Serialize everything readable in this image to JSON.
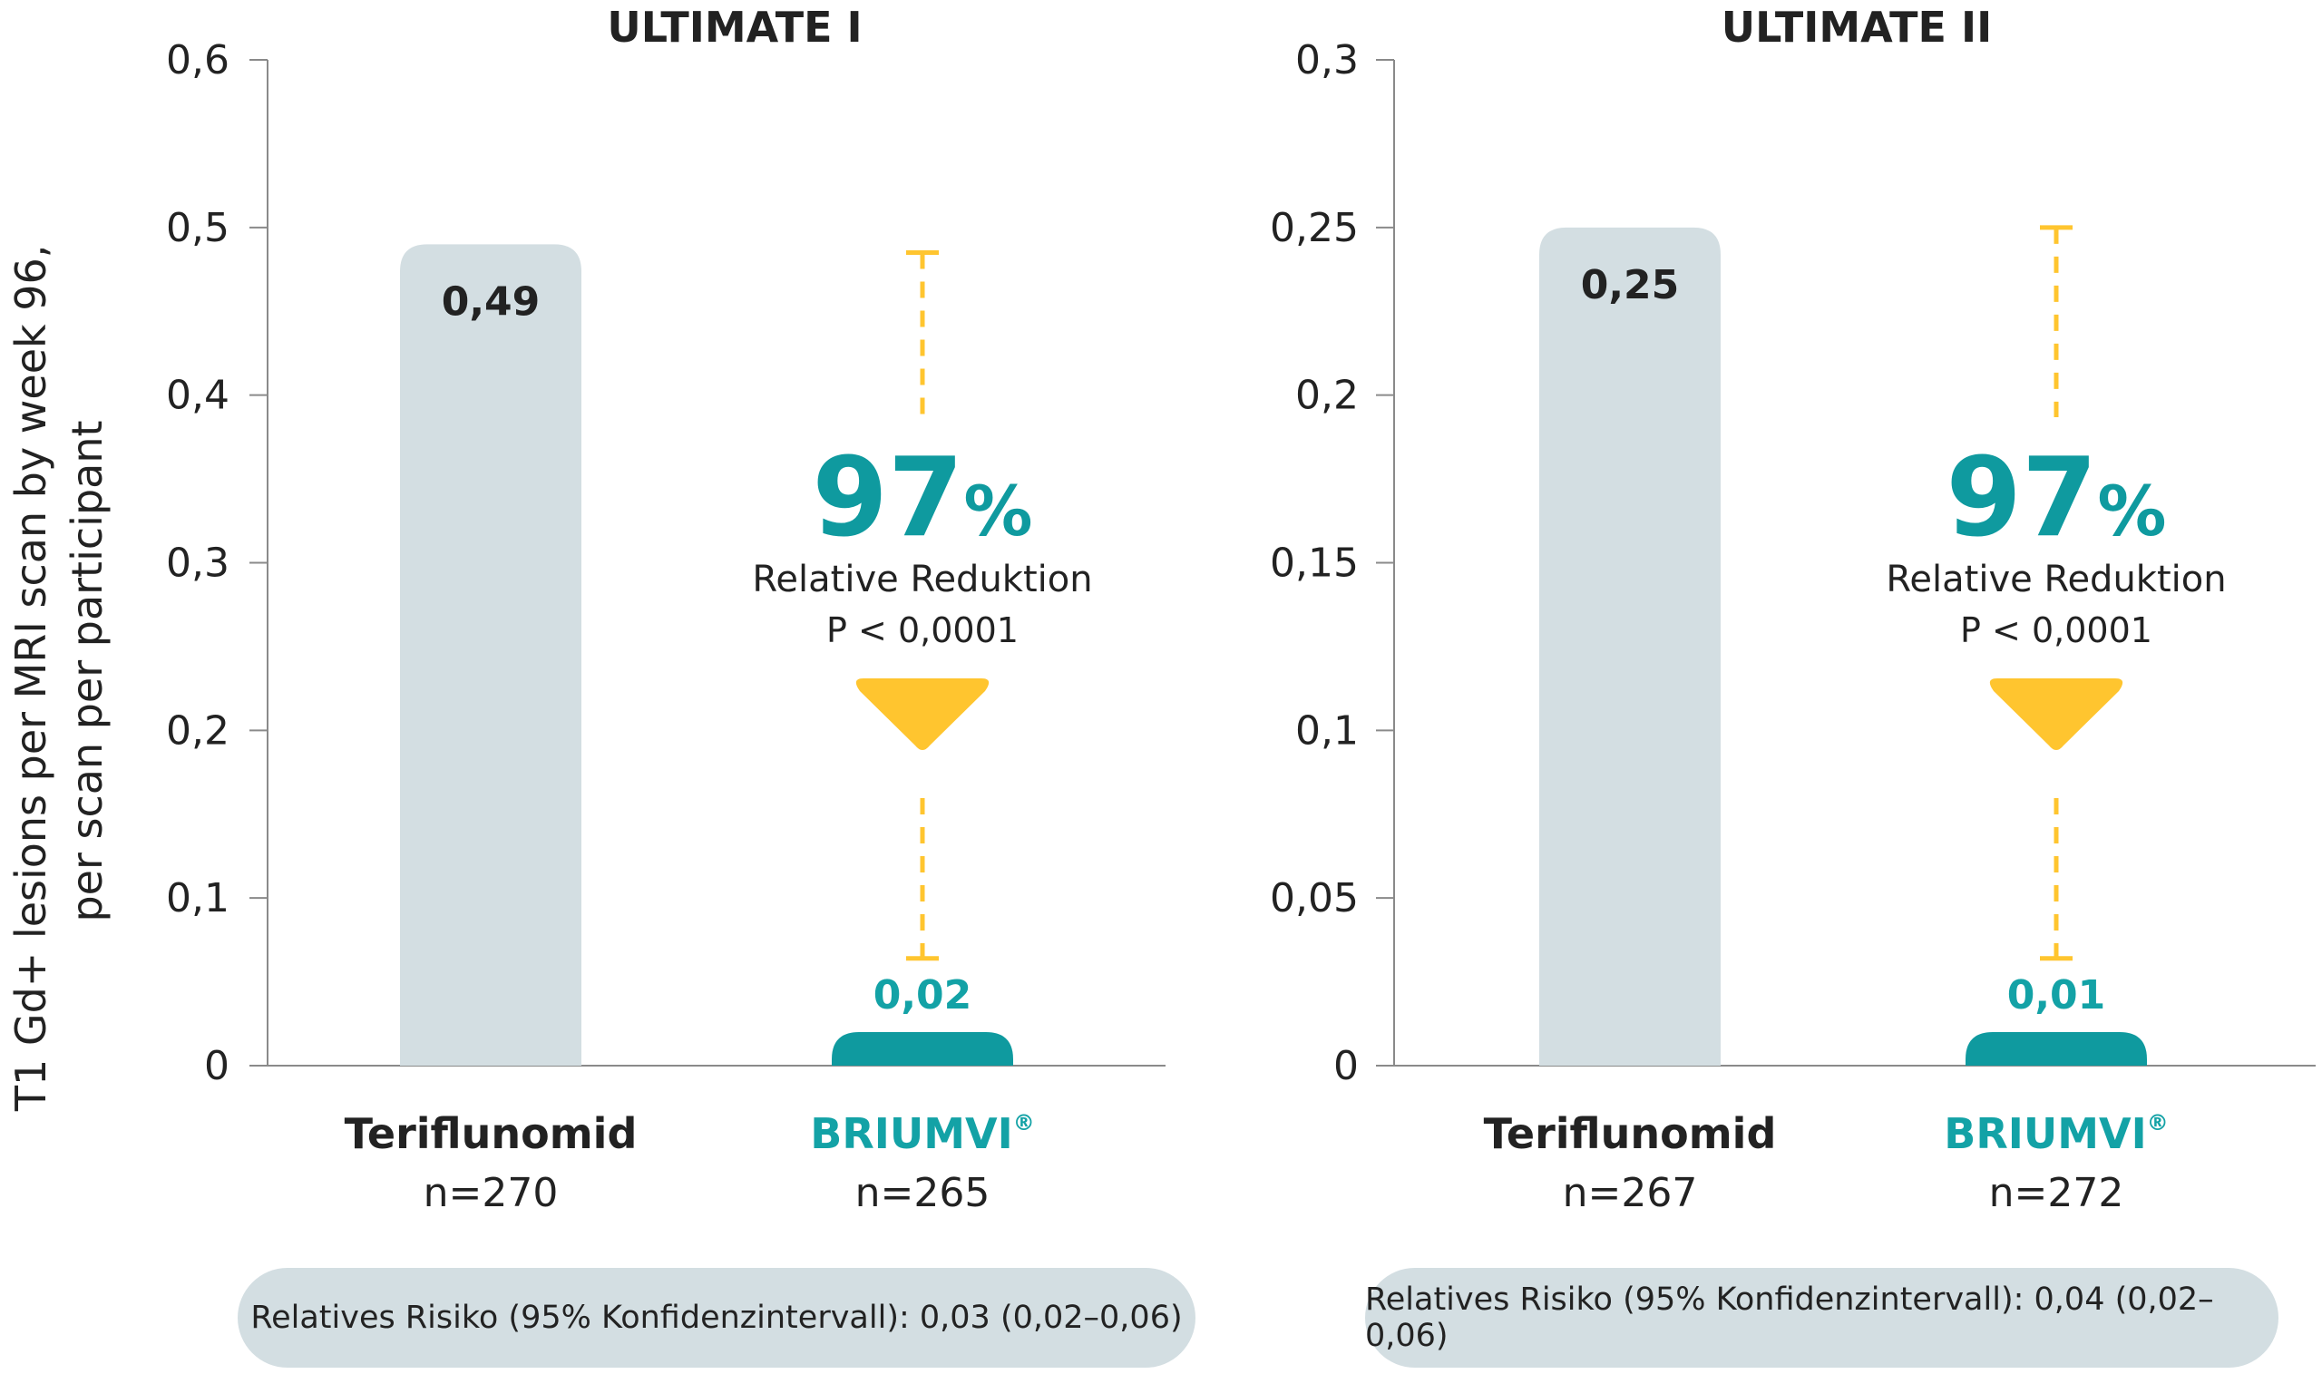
{
  "y_axis_label": {
    "line1": "T1 Gd+ lesions per MRI scan by week 96,",
    "line2": "per scan per participant"
  },
  "colors": {
    "teriflunomid_bar": "#d3dee2",
    "briumvi_bar": "#0f9a9f",
    "briumvi_text": "#13a2a6",
    "reduction_accent": "#ffc52f",
    "axis": "#8a8a8a",
    "text_dark": "#222222",
    "note_bg": "#d3dee2"
  },
  "chart_data": [
    {
      "type": "bar",
      "title": "ULTIMATE I",
      "ylim": [
        0,
        0.6
      ],
      "yticks": [
        0,
        0.1,
        0.2,
        0.3,
        0.4,
        0.5,
        0.6
      ],
      "ytick_labels": [
        "0",
        "0,1",
        "0,2",
        "0,3",
        "0,4",
        "0,5",
        "0,6"
      ],
      "categories": [
        {
          "name": "Teriflunomid",
          "superscript": "",
          "n_label": "n=270",
          "value": 0.49,
          "value_label": "0,49"
        },
        {
          "name": "BRIUMVI",
          "superscript": "®",
          "n_label": "n=265",
          "value": 0.02,
          "value_label": "0,02"
        }
      ],
      "reduction": {
        "percent": "97",
        "percent_sign": "%",
        "label": "Relative Reduktion",
        "p_value": "P < 0,0001",
        "from": 0.485,
        "to": 0.064
      },
      "note": "Relatives Risiko (95% Konfidenzintervall): 0,03 (0,02–0,06)"
    },
    {
      "type": "bar",
      "title": "ULTIMATE II",
      "ylim": [
        0,
        0.3
      ],
      "yticks": [
        0,
        0.05,
        0.1,
        0.15,
        0.2,
        0.25,
        0.3
      ],
      "ytick_labels": [
        "0",
        "0,05",
        "0,1",
        "0,15",
        "0,2",
        "0,25",
        "0,3"
      ],
      "categories": [
        {
          "name": "Teriflunomid",
          "superscript": "",
          "n_label": "n=267",
          "value": 0.25,
          "value_label": "0,25"
        },
        {
          "name": "BRIUMVI",
          "superscript": "®",
          "n_label": "n=272",
          "value": 0.01,
          "value_label": "0,01"
        }
      ],
      "reduction": {
        "percent": "97",
        "percent_sign": "%",
        "label": "Relative Reduktion",
        "p_value": "P < 0,0001",
        "from": 0.25,
        "to": 0.032
      },
      "note": "Relatives Risiko (95% Konfidenzintervall): 0,04 (0,02–0,06)"
    }
  ]
}
